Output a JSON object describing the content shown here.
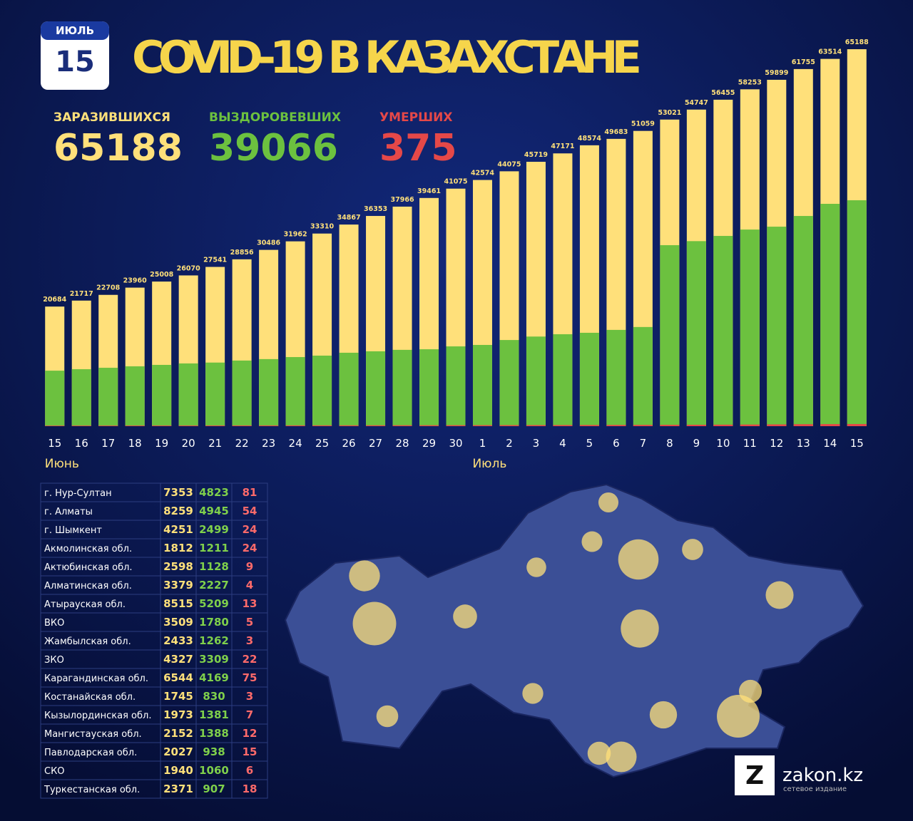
{
  "header": {
    "month": "ИЮЛЬ",
    "day": "15",
    "title": "COVID-19 В КАЗАХСТАНЕ"
  },
  "stats": [
    {
      "label": "ЗАРАЗИВШИХСЯ",
      "value": "65188"
    },
    {
      "label": "ВЫЗДОРОВЕВШИХ",
      "value": "39066"
    },
    {
      "label": "УМЕРШИХ",
      "value": "375"
    }
  ],
  "chart_data": {
    "type": "bar",
    "categories": [
      "15",
      "16",
      "17",
      "18",
      "19",
      "20",
      "21",
      "22",
      "23",
      "24",
      "25",
      "26",
      "27",
      "28",
      "29",
      "30",
      "1",
      "2",
      "3",
      "4",
      "5",
      "6",
      "7",
      "8",
      "9",
      "10",
      "11",
      "12",
      "13",
      "14",
      "15"
    ],
    "month_labels": [
      "Июнь",
      "Июль"
    ],
    "ylim": [
      0,
      70000
    ],
    "series": [
      {
        "name": "Заразившихся",
        "color": "#ffe07a",
        "values": [
          20684,
          21717,
          22708,
          23960,
          25008,
          26070,
          27541,
          28856,
          30486,
          31962,
          33310,
          34867,
          36353,
          37966,
          39461,
          41075,
          42574,
          44075,
          45719,
          47171,
          48574,
          49683,
          51059,
          53021,
          54747,
          56455,
          58253,
          59899,
          61755,
          63514,
          65188
        ]
      },
      {
        "name": "Выздоровевших",
        "color": "#6cc13f",
        "values": [
          9600,
          9850,
          10100,
          10350,
          10600,
          10850,
          11000,
          11350,
          11600,
          11950,
          12200,
          12700,
          12950,
          13200,
          13300,
          13800,
          14050,
          14900,
          15500,
          15900,
          16150,
          16650,
          17150,
          31300,
          32000,
          32900,
          34000,
          34500,
          36350,
          38450,
          39066
        ]
      },
      {
        "name": "Умерших",
        "color": "#e54848",
        "values": [
          100,
          103,
          106,
          110,
          113,
          117,
          121,
          125,
          130,
          136,
          141,
          147,
          152,
          158,
          164,
          170,
          176,
          182,
          188,
          196,
          204,
          214,
          224,
          236,
          248,
          264,
          286,
          312,
          344,
          360,
          375
        ]
      }
    ]
  },
  "table": {
    "rows": [
      [
        "г. Нур-Султан",
        7353,
        4823,
        81
      ],
      [
        "г. Алматы",
        8259,
        4945,
        54
      ],
      [
        "г. Шымкент",
        4251,
        2499,
        24
      ],
      [
        "Акмолинская обл.",
        1812,
        1211,
        24
      ],
      [
        "Актюбинская обл.",
        2598,
        1128,
        9
      ],
      [
        "Алматинская обл.",
        3379,
        2227,
        4
      ],
      [
        "Атырауская обл.",
        8515,
        5209,
        13
      ],
      [
        "ВКО",
        3509,
        1780,
        5
      ],
      [
        "Жамбылская обл.",
        2433,
        1262,
        3
      ],
      [
        "ЗКО",
        4327,
        3309,
        22
      ],
      [
        "Карагандинская обл.",
        6544,
        4169,
        75
      ],
      [
        "Костанайская обл.",
        1745,
        830,
        3
      ],
      [
        "Кызылординская обл.",
        1973,
        1381,
        7
      ],
      [
        "Мангистауская обл.",
        2152,
        1388,
        12
      ],
      [
        "Павлодарская обл.",
        2027,
        938,
        15
      ],
      [
        "СКО",
        1940,
        1060,
        6
      ],
      [
        "Туркестанская обл.",
        2371,
        907,
        18
      ]
    ]
  },
  "logo": {
    "mark": "Z",
    "name": "zakon.kz",
    "tagline": "сетевое издание"
  }
}
